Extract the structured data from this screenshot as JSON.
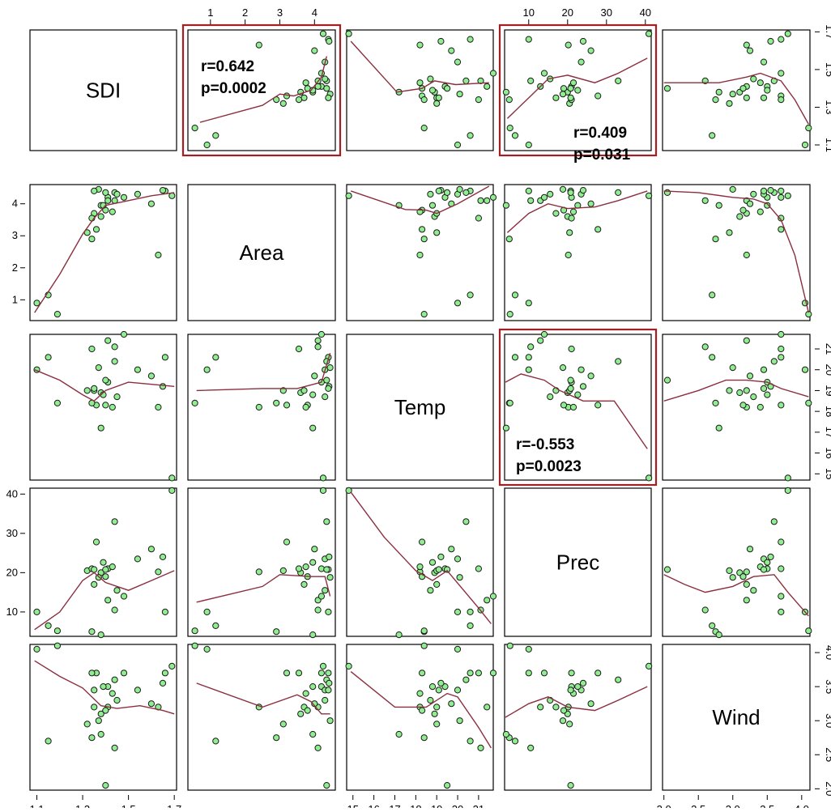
{
  "colors": {
    "point_fill": "#90EE90",
    "point_stroke": "#1a1a1a",
    "smoother": "#8B2F3F",
    "highlight_frame": "#A31F24",
    "panel_frame": "#000000"
  },
  "chart_data": {
    "type": "scatter-matrix",
    "variables": [
      "SDI",
      "Area",
      "Temp",
      "Prec",
      "Wind"
    ],
    "ranges": [
      [
        1.07,
        1.71
      ],
      [
        0.35,
        4.6
      ],
      [
        14.7,
        21.7
      ],
      [
        3.8,
        41.5
      ],
      [
        1.98,
        4.12
      ]
    ],
    "ticks": [
      [
        1.1,
        1.3,
        1.5,
        1.7
      ],
      [
        1,
        2,
        3,
        4
      ],
      [
        15,
        16,
        17,
        18,
        19,
        20,
        21
      ],
      [
        10,
        20,
        30,
        40
      ],
      [
        2.0,
        2.5,
        3.0,
        3.5,
        4.0
      ]
    ],
    "tick_labels": [
      [
        "1.1",
        "1.3",
        "1.5",
        "1.7"
      ],
      [
        "1",
        "2",
        "3",
        "4"
      ],
      [
        "15",
        "16",
        "17",
        "18",
        "19",
        "20",
        "21"
      ],
      [
        "10",
        "20",
        "30",
        "40"
      ],
      [
        "2.0",
        "2.5",
        "3.0",
        "3.5",
        "4.0"
      ]
    ],
    "axes": {
      "bottom": [
        0,
        2,
        4
      ],
      "top": [
        1,
        3
      ],
      "left": [
        1,
        3
      ],
      "right": [
        0,
        2,
        4
      ]
    },
    "observations": [
      {
        "SDI": 1.66,
        "Area": 4.4,
        "Temp": 20.6,
        "Prec": 10.0,
        "Wind": 3.7
      },
      {
        "SDI": 1.38,
        "Area": 3.6,
        "Temp": 18.9,
        "Prec": 20.0,
        "Wind": 3.1
      },
      {
        "SDI": 1.35,
        "Area": 3.7,
        "Temp": 19.0,
        "Prec": 17.0,
        "Wind": 3.2
      },
      {
        "SDI": 1.41,
        "Area": 4.2,
        "Temp": 19.4,
        "Prec": 21.0,
        "Wind": 3.5
      },
      {
        "SDI": 1.69,
        "Area": 4.25,
        "Temp": 14.8,
        "Prec": 40.9,
        "Wind": 3.8
      },
      {
        "SDI": 1.44,
        "Area": 4.35,
        "Temp": 20.4,
        "Prec": 33.0,
        "Wind": 3.6
      },
      {
        "SDI": 1.32,
        "Area": 3.1,
        "Temp": 19.0,
        "Prec": 20.5,
        "Wind": 2.95
      },
      {
        "SDI": 1.41,
        "Area": 4.1,
        "Temp": 21.4,
        "Prec": 13.0,
        "Wind": 3.2
      },
      {
        "SDI": 1.1,
        "Area": 0.9,
        "Temp": 20.0,
        "Prec": 10.0,
        "Wind": 4.05
      },
      {
        "SDI": 1.36,
        "Area": 3.2,
        "Temp": 18.3,
        "Prec": 27.8,
        "Wind": 3.7
      },
      {
        "SDI": 1.54,
        "Area": 4.3,
        "Temp": 20.0,
        "Prec": 23.5,
        "Wind": 3.45
      },
      {
        "SDI": 1.34,
        "Area": 2.9,
        "Temp": 18.4,
        "Prec": 5.0,
        "Wind": 2.75
      },
      {
        "SDI": 1.45,
        "Area": 4.3,
        "Temp": 18.7,
        "Prec": 15.5,
        "Wind": 3.3
      },
      {
        "SDI": 1.63,
        "Area": 2.4,
        "Temp": 18.2,
        "Prec": 20.2,
        "Wind": 3.2
      },
      {
        "SDI": 1.37,
        "Area": 4.45,
        "Temp": 20.1,
        "Prec": 18.8,
        "Wind": 3.0
      },
      {
        "SDI": 1.38,
        "Area": 3.95,
        "Temp": 17.2,
        "Prec": 4.2,
        "Wind": 2.8
      },
      {
        "SDI": 1.4,
        "Area": 3.8,
        "Temp": 18.3,
        "Prec": 19.0,
        "Wind": 3.15
      },
      {
        "SDI": 1.39,
        "Area": 3.95,
        "Temp": 18.8,
        "Prec": 22.6,
        "Wind": 3.5
      },
      {
        "SDI": 1.34,
        "Area": 3.55,
        "Temp": 21.0,
        "Prec": 21.0,
        "Wind": 3.7
      },
      {
        "SDI": 1.43,
        "Area": 3.75,
        "Temp": 18.2,
        "Prec": 21.5,
        "Wind": 3.4
      },
      {
        "SDI": 1.19,
        "Area": 0.55,
        "Temp": 18.4,
        "Prec": 5.2,
        "Wind": 4.1
      },
      {
        "SDI": 1.6,
        "Area": 4.0,
        "Temp": 19.7,
        "Prec": 26.0,
        "Wind": 3.25
      },
      {
        "SDI": 1.65,
        "Area": 4.42,
        "Temp": 19.2,
        "Prec": 24.0,
        "Wind": 3.55
      },
      {
        "SDI": 1.15,
        "Area": 1.15,
        "Temp": 20.6,
        "Prec": 6.5,
        "Wind": 2.7
      },
      {
        "SDI": 1.44,
        "Area": 4.1,
        "Temp": 21.1,
        "Prec": 10.5,
        "Wind": 2.6
      },
      {
        "SDI": 1.48,
        "Area": 4.2,
        "Temp": 21.7,
        "Prec": 14.0,
        "Wind": 3.7
      },
      {
        "SDI": 1.35,
        "Area": 4.4,
        "Temp": 19.1,
        "Prec": 20.8,
        "Wind": 3.45
      },
      {
        "SDI": 1.4,
        "Area": 4.35,
        "Temp": 19.5,
        "Prec": 20.8,
        "Wind": 2.05
      }
    ],
    "smoothers": [
      {
        "row": 0,
        "col": 1,
        "x": [
          0.7,
          2.5,
          3.0,
          3.4,
          3.9,
          4.2,
          4.35
        ],
        "y": [
          1.22,
          1.31,
          1.37,
          1.36,
          1.39,
          1.46,
          1.57
        ]
      },
      {
        "row": 0,
        "col": 2,
        "x": [
          14.9,
          17.1,
          18.3,
          18.9,
          19.9,
          21.5
        ],
        "y": [
          1.65,
          1.38,
          1.4,
          1.44,
          1.42,
          1.43
        ]
      },
      {
        "row": 0,
        "col": 3,
        "x": [
          4.5,
          11.0,
          15.0,
          20.0,
          27.0,
          33.0,
          40.5
        ],
        "y": [
          1.24,
          1.37,
          1.45,
          1.47,
          1.43,
          1.48,
          1.56
        ]
      },
      {
        "row": 0,
        "col": 4,
        "x": [
          2.0,
          2.4,
          2.8,
          3.2,
          3.4,
          3.7,
          3.9,
          4.1
        ],
        "y": [
          1.43,
          1.43,
          1.43,
          1.46,
          1.48,
          1.44,
          1.34,
          1.21
        ]
      },
      {
        "row": 1,
        "col": 0,
        "x": [
          1.09,
          1.2,
          1.3,
          1.35,
          1.4,
          1.5,
          1.6,
          1.7
        ],
        "y": [
          0.6,
          1.8,
          3.05,
          3.55,
          3.95,
          4.1,
          4.25,
          4.35
        ]
      },
      {
        "row": 1,
        "col": 2,
        "x": [
          14.9,
          17.5,
          18.5,
          19.0,
          20.0,
          21.5
        ],
        "y": [
          4.4,
          3.82,
          3.8,
          3.7,
          4.0,
          4.55
        ]
      },
      {
        "row": 1,
        "col": 3,
        "x": [
          4.5,
          10.0,
          15.0,
          20.0,
          27.0,
          33.0,
          40.5
        ],
        "y": [
          3.1,
          3.7,
          4.0,
          3.85,
          3.9,
          4.1,
          4.4
        ]
      },
      {
        "row": 1,
        "col": 4,
        "x": [
          2.0,
          2.5,
          3.0,
          3.3,
          3.5,
          3.7,
          3.9,
          4.1
        ],
        "y": [
          4.4,
          4.35,
          4.2,
          4.15,
          4.0,
          3.5,
          2.4,
          0.6
        ]
      },
      {
        "row": 2,
        "col": 0,
        "x": [
          1.09,
          1.2,
          1.3,
          1.35,
          1.4,
          1.5,
          1.6,
          1.7
        ],
        "y": [
          20.0,
          19.5,
          18.8,
          18.5,
          19.0,
          19.4,
          19.3,
          19.2
        ]
      },
      {
        "row": 2,
        "col": 1,
        "x": [
          0.6,
          2.5,
          3.5,
          4.2,
          4.45
        ],
        "y": [
          19.0,
          19.1,
          19.1,
          19.4,
          20.8
        ]
      },
      {
        "row": 2,
        "col": 3,
        "x": [
          4.0,
          8.0,
          14.0,
          18.0,
          24.0,
          32.0,
          40.5
        ],
        "y": [
          19.4,
          19.8,
          19.5,
          19.0,
          18.5,
          18.5,
          16.2
        ]
      },
      {
        "row": 2,
        "col": 4,
        "x": [
          2.0,
          2.5,
          2.9,
          3.2,
          3.5,
          3.7,
          4.1
        ],
        "y": [
          18.5,
          19.0,
          19.5,
          19.5,
          19.4,
          19.1,
          18.7
        ]
      },
      {
        "row": 3,
        "col": 0,
        "x": [
          1.09,
          1.2,
          1.3,
          1.35,
          1.4,
          1.5,
          1.6,
          1.7
        ],
        "y": [
          5.5,
          10.0,
          18.0,
          20.0,
          17.5,
          15.5,
          18.0,
          20.5
        ]
      },
      {
        "row": 3,
        "col": 1,
        "x": [
          0.6,
          2.5,
          3.0,
          3.9,
          4.3,
          4.45
        ],
        "y": [
          12.5,
          16.5,
          19.5,
          19.0,
          19.0,
          14.0
        ]
      },
      {
        "row": 3,
        "col": 2,
        "x": [
          14.9,
          16.5,
          18.0,
          18.8,
          19.5,
          21.0,
          21.6
        ],
        "y": [
          40.5,
          29.0,
          20.5,
          18.0,
          20.5,
          11.0,
          7.0
        ]
      },
      {
        "row": 3,
        "col": 4,
        "x": [
          2.0,
          2.3,
          2.6,
          3.0,
          3.3,
          3.6,
          3.8,
          4.1
        ],
        "y": [
          19.5,
          17.0,
          15.0,
          16.5,
          19.0,
          19.5,
          15.0,
          9.0
        ]
      },
      {
        "row": 4,
        "col": 0,
        "x": [
          1.09,
          1.2,
          1.3,
          1.38,
          1.45,
          1.55,
          1.65,
          1.7
        ],
        "y": [
          3.88,
          3.65,
          3.48,
          3.22,
          3.18,
          3.22,
          3.15,
          3.1
        ]
      },
      {
        "row": 4,
        "col": 1,
        "x": [
          0.6,
          2.5,
          3.5,
          3.9,
          4.2,
          4.45
        ],
        "y": [
          3.55,
          3.2,
          3.38,
          3.28,
          3.1,
          3.1
        ]
      },
      {
        "row": 4,
        "col": 2,
        "x": [
          14.9,
          17.0,
          18.5,
          19.5,
          20.0,
          21.0,
          21.6
        ],
        "y": [
          3.72,
          3.2,
          3.2,
          3.4,
          3.35,
          2.9,
          2.6
        ]
      },
      {
        "row": 4,
        "col": 3,
        "x": [
          4.0,
          10.0,
          15.0,
          20.0,
          27.0,
          33.0,
          40.5
        ],
        "y": [
          3.05,
          3.25,
          3.35,
          3.2,
          3.15,
          3.3,
          3.5
        ]
      }
    ],
    "highlights": [
      {
        "row": 0,
        "col": 1,
        "annotation": [
          "r=0.642",
          "p=0.0002"
        ],
        "corner": "top-left"
      },
      {
        "row": 0,
        "col": 3,
        "annotation": [
          "r=0.409",
          "p=0.031"
        ],
        "corner": "bottom-right"
      },
      {
        "row": 2,
        "col": 3,
        "annotation": [
          "r=-0.553",
          "p=0.0023"
        ],
        "corner": "bottom-left"
      }
    ]
  }
}
